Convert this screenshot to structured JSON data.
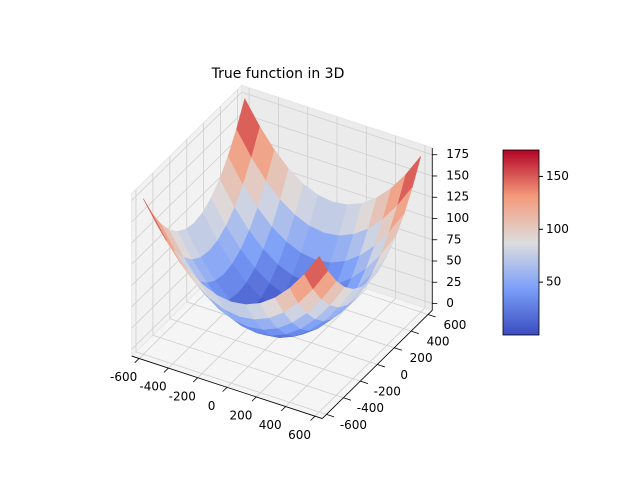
{
  "chart_data": {
    "type": "surface",
    "title": "True function in 3D",
    "x": [
      -600,
      -500,
      -400,
      -300,
      -200,
      -100,
      0,
      100,
      200,
      300,
      400,
      500,
      600
    ],
    "y": [
      -600,
      -500,
      -400,
      -300,
      -200,
      -100,
      0,
      100,
      200,
      300,
      400,
      500,
      600
    ],
    "z": [
      [
        175,
        148.3,
        126.4,
        109.4,
        97.2,
        89.9,
        87.5,
        89.9,
        97.2,
        109.4,
        126.4,
        148.3,
        175
      ],
      [
        148.3,
        121.6,
        99.7,
        82.7,
        70.5,
        63.2,
        60.8,
        63.2,
        70.5,
        82.7,
        99.7,
        121.6,
        148.3
      ],
      [
        126.4,
        99.7,
        77.8,
        60.8,
        48.6,
        41.3,
        38.9,
        41.3,
        48.6,
        60.8,
        77.8,
        99.7,
        126.4
      ],
      [
        109.4,
        82.7,
        60.8,
        43.8,
        31.6,
        24.3,
        21.9,
        24.3,
        31.6,
        43.8,
        60.8,
        82.7,
        109.4
      ],
      [
        97.2,
        70.5,
        48.6,
        31.6,
        19.4,
        12.1,
        9.7,
        12.1,
        19.4,
        31.6,
        48.6,
        70.5,
        97.2
      ],
      [
        89.9,
        63.2,
        41.3,
        24.3,
        12.1,
        4.8,
        2.4,
        4.8,
        12.1,
        24.3,
        41.3,
        63.2,
        89.9
      ],
      [
        87.5,
        60.8,
        38.9,
        21.9,
        9.7,
        2.4,
        0,
        2.4,
        9.7,
        21.9,
        38.9,
        60.8,
        87.5
      ],
      [
        89.9,
        63.2,
        41.3,
        24.3,
        12.1,
        4.8,
        2.4,
        4.8,
        12.1,
        24.3,
        41.3,
        63.2,
        89.9
      ],
      [
        97.2,
        70.5,
        48.6,
        31.6,
        19.4,
        12.1,
        9.7,
        12.1,
        19.4,
        31.6,
        48.6,
        70.5,
        97.2
      ],
      [
        109.4,
        82.7,
        60.8,
        43.8,
        31.6,
        24.3,
        21.9,
        24.3,
        31.6,
        43.8,
        60.8,
        82.7,
        109.4
      ],
      [
        126.4,
        99.7,
        77.8,
        60.8,
        48.6,
        41.3,
        38.9,
        41.3,
        48.6,
        60.8,
        77.8,
        99.7,
        126.4
      ],
      [
        148.3,
        121.6,
        99.7,
        82.7,
        70.5,
        63.2,
        60.8,
        63.2,
        70.5,
        82.7,
        99.7,
        121.6,
        148.3
      ],
      [
        175,
        148.3,
        126.4,
        109.4,
        97.2,
        89.9,
        87.5,
        89.9,
        97.2,
        109.4,
        126.4,
        148.3,
        175
      ]
    ],
    "xlim": [
      -650,
      650
    ],
    "ylim": [
      -650,
      650
    ],
    "zlim": [
      -8,
      183
    ],
    "xticks": [
      -600,
      -400,
      -200,
      0,
      200,
      400,
      600
    ],
    "yticks": [
      -600,
      -400,
      -200,
      0,
      200,
      400,
      600
    ],
    "zticks": [
      0,
      25,
      50,
      75,
      100,
      125,
      150,
      175
    ],
    "colormap": [
      "#3b4cc0",
      "#7b9ff9",
      "#dddddd",
      "#f49a7b",
      "#b40426"
    ],
    "clim": [
      0,
      175
    ],
    "colorbar_ticks": [
      50,
      100,
      150
    ],
    "grid": true
  }
}
